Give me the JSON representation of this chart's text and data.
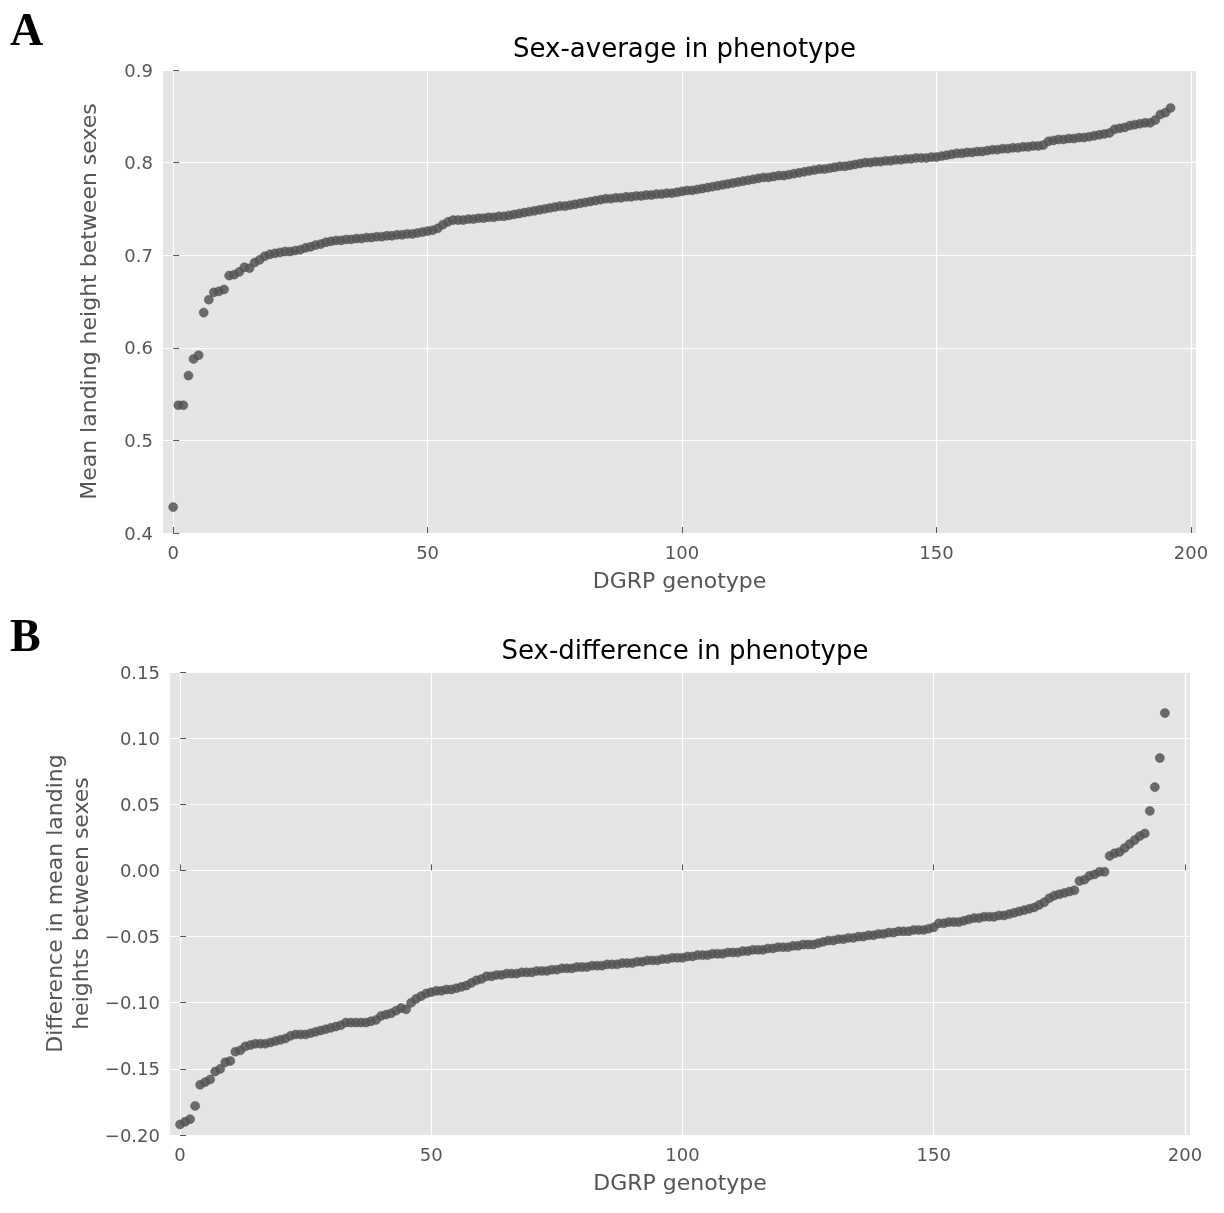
{
  "chart_data": [
    {
      "type": "scatter",
      "title": "Sex-average in phenotype",
      "xlabel": "DGRP genotype",
      "ylabel": "Mean landing height between sexes",
      "annotations": [
        "A"
      ],
      "grid": true,
      "marker": "circle",
      "xlim": [
        -2,
        201
      ],
      "xticks": [
        0,
        50,
        100,
        150,
        200
      ],
      "ylim": [
        0.4,
        0.9
      ],
      "yticks": [
        0.4,
        0.5,
        0.6,
        0.7,
        0.8,
        0.9
      ],
      "x": [
        0,
        1,
        2,
        3,
        4,
        5,
        6,
        7,
        8,
        9,
        10,
        11,
        12,
        13,
        14,
        15,
        16,
        17,
        18,
        19,
        20,
        21,
        22,
        23,
        24,
        25,
        26,
        27,
        28,
        29,
        30,
        31,
        32,
        33,
        34,
        35,
        36,
        37,
        38,
        39,
        40,
        41,
        42,
        43,
        44,
        45,
        46,
        47,
        48,
        49,
        50,
        51,
        52,
        53,
        54,
        55,
        56,
        57,
        58,
        59,
        60,
        61,
        62,
        63,
        64,
        65,
        66,
        67,
        68,
        69,
        70,
        71,
        72,
        73,
        74,
        75,
        76,
        77,
        78,
        79,
        80,
        81,
        82,
        83,
        84,
        85,
        86,
        87,
        88,
        89,
        90,
        91,
        92,
        93,
        94,
        95,
        96,
        97,
        98,
        99,
        100,
        101,
        102,
        103,
        104,
        105,
        106,
        107,
        108,
        109,
        110,
        111,
        112,
        113,
        114,
        115,
        116,
        117,
        118,
        119,
        120,
        121,
        122,
        123,
        124,
        125,
        126,
        127,
        128,
        129,
        130,
        131,
        132,
        133,
        134,
        135,
        136,
        137,
        138,
        139,
        140,
        141,
        142,
        143,
        144,
        145,
        146,
        147,
        148,
        149,
        150,
        151,
        152,
        153,
        154,
        155,
        156,
        157,
        158,
        159,
        160,
        161,
        162,
        163,
        164,
        165,
        166,
        167,
        168,
        169,
        170,
        171,
        172,
        173,
        174,
        175,
        176,
        177,
        178,
        179,
        180,
        181,
        182,
        183,
        184,
        185,
        186,
        187,
        188,
        189,
        190,
        191,
        192,
        193,
        194,
        195,
        196
      ],
      "series": [
        {
          "color": "#555555",
          "values": [
            0.428,
            0.538,
            0.538,
            0.57,
            0.588,
            0.592,
            0.638,
            0.652,
            0.66,
            0.661,
            0.663,
            0.678,
            0.679,
            0.682,
            0.687,
            0.686,
            0.692,
            0.695,
            0.699,
            0.701,
            0.702,
            0.703,
            0.704,
            0.704,
            0.705,
            0.706,
            0.708,
            0.709,
            0.711,
            0.712,
            0.714,
            0.715,
            0.716,
            0.716,
            0.717,
            0.717,
            0.718,
            0.718,
            0.719,
            0.719,
            0.72,
            0.72,
            0.721,
            0.721,
            0.722,
            0.722,
            0.723,
            0.723,
            0.724,
            0.725,
            0.726,
            0.727,
            0.729,
            0.733,
            0.736,
            0.738,
            0.738,
            0.738,
            0.739,
            0.739,
            0.74,
            0.74,
            0.741,
            0.741,
            0.742,
            0.742,
            0.743,
            0.744,
            0.745,
            0.746,
            0.747,
            0.748,
            0.749,
            0.75,
            0.751,
            0.752,
            0.753,
            0.753,
            0.754,
            0.755,
            0.756,
            0.757,
            0.758,
            0.759,
            0.76,
            0.761,
            0.761,
            0.762,
            0.762,
            0.763,
            0.763,
            0.764,
            0.764,
            0.765,
            0.765,
            0.766,
            0.766,
            0.767,
            0.767,
            0.768,
            0.769,
            0.77,
            0.77,
            0.771,
            0.772,
            0.773,
            0.774,
            0.775,
            0.776,
            0.777,
            0.778,
            0.779,
            0.78,
            0.781,
            0.782,
            0.783,
            0.784,
            0.784,
            0.785,
            0.786,
            0.786,
            0.787,
            0.788,
            0.789,
            0.79,
            0.791,
            0.792,
            0.793,
            0.793,
            0.794,
            0.795,
            0.796,
            0.796,
            0.797,
            0.798,
            0.799,
            0.8,
            0.8,
            0.801,
            0.801,
            0.802,
            0.802,
            0.803,
            0.803,
            0.804,
            0.804,
            0.805,
            0.805,
            0.805,
            0.806,
            0.806,
            0.807,
            0.808,
            0.809,
            0.81,
            0.81,
            0.811,
            0.811,
            0.812,
            0.812,
            0.813,
            0.814,
            0.814,
            0.815,
            0.815,
            0.816,
            0.816,
            0.817,
            0.817,
            0.818,
            0.818,
            0.819,
            0.823,
            0.824,
            0.825,
            0.825,
            0.826,
            0.826,
            0.827,
            0.827,
            0.828,
            0.829,
            0.83,
            0.831,
            0.832,
            0.836,
            0.837,
            0.838,
            0.84,
            0.841,
            0.842,
            0.843,
            0.843,
            0.846,
            0.852,
            0.854,
            0.859
          ]
        }
      ]
    },
    {
      "type": "scatter",
      "title": "Sex-difference in phenotype",
      "xlabel": "DGRP genotype",
      "ylabel": "Difference in mean landing\nheights between sexes",
      "annotations": [
        "B"
      ],
      "grid": true,
      "marker": "circle",
      "xlim": [
        -2,
        201
      ],
      "xticks": [
        0,
        50,
        100,
        150,
        200
      ],
      "ylim": [
        -0.2,
        0.15
      ],
      "yticks": [
        {
          "value": -0.2,
          "label": "−0.20"
        },
        {
          "value": -0.15,
          "label": "−0.15"
        },
        {
          "value": -0.1,
          "label": "−0.10"
        },
        {
          "value": -0.05,
          "label": "−0.05"
        },
        {
          "value": 0,
          "label": "0.00"
        },
        {
          "value": 0.05,
          "label": "0.05"
        },
        {
          "value": 0.1,
          "label": "0.10"
        },
        {
          "value": 0.15,
          "label": "0.15"
        }
      ],
      "x": [
        0,
        1,
        2,
        3,
        4,
        5,
        6,
        7,
        8,
        9,
        10,
        11,
        12,
        13,
        14,
        15,
        16,
        17,
        18,
        19,
        20,
        21,
        22,
        23,
        24,
        25,
        26,
        27,
        28,
        29,
        30,
        31,
        32,
        33,
        34,
        35,
        36,
        37,
        38,
        39,
        40,
        41,
        42,
        43,
        44,
        45,
        46,
        47,
        48,
        49,
        50,
        51,
        52,
        53,
        54,
        55,
        56,
        57,
        58,
        59,
        60,
        61,
        62,
        63,
        64,
        65,
        66,
        67,
        68,
        69,
        70,
        71,
        72,
        73,
        74,
        75,
        76,
        77,
        78,
        79,
        80,
        81,
        82,
        83,
        84,
        85,
        86,
        87,
        88,
        89,
        90,
        91,
        92,
        93,
        94,
        95,
        96,
        97,
        98,
        99,
        100,
        101,
        102,
        103,
        104,
        105,
        106,
        107,
        108,
        109,
        110,
        111,
        112,
        113,
        114,
        115,
        116,
        117,
        118,
        119,
        120,
        121,
        122,
        123,
        124,
        125,
        126,
        127,
        128,
        129,
        130,
        131,
        132,
        133,
        134,
        135,
        136,
        137,
        138,
        139,
        140,
        141,
        142,
        143,
        144,
        145,
        146,
        147,
        148,
        149,
        150,
        151,
        152,
        153,
        154,
        155,
        156,
        157,
        158,
        159,
        160,
        161,
        162,
        163,
        164,
        165,
        166,
        167,
        168,
        169,
        170,
        171,
        172,
        173,
        174,
        175,
        176,
        177,
        178,
        179,
        180,
        181,
        182,
        183,
        184,
        185,
        186,
        187,
        188,
        189,
        190,
        191,
        192,
        193,
        194,
        195,
        196
      ],
      "series": [
        {
          "color": "#555555",
          "values": [
            -0.192,
            -0.19,
            -0.188,
            -0.178,
            -0.162,
            -0.16,
            -0.158,
            -0.152,
            -0.15,
            -0.145,
            -0.144,
            -0.137,
            -0.136,
            -0.133,
            -0.132,
            -0.131,
            -0.131,
            -0.131,
            -0.13,
            -0.129,
            -0.128,
            -0.127,
            -0.125,
            -0.124,
            -0.124,
            -0.124,
            -0.123,
            -0.122,
            -0.121,
            -0.12,
            -0.119,
            -0.118,
            -0.117,
            -0.115,
            -0.115,
            -0.115,
            -0.115,
            -0.115,
            -0.114,
            -0.113,
            -0.11,
            -0.109,
            -0.108,
            -0.106,
            -0.104,
            -0.105,
            -0.1,
            -0.097,
            -0.095,
            -0.093,
            -0.092,
            -0.091,
            -0.091,
            -0.09,
            -0.09,
            -0.089,
            -0.088,
            -0.087,
            -0.085,
            -0.083,
            -0.082,
            -0.08,
            -0.08,
            -0.079,
            -0.079,
            -0.078,
            -0.078,
            -0.078,
            -0.077,
            -0.077,
            -0.077,
            -0.076,
            -0.076,
            -0.076,
            -0.075,
            -0.075,
            -0.074,
            -0.074,
            -0.074,
            -0.073,
            -0.073,
            -0.073,
            -0.072,
            -0.072,
            -0.072,
            -0.071,
            -0.071,
            -0.071,
            -0.07,
            -0.07,
            -0.07,
            -0.069,
            -0.069,
            -0.068,
            -0.068,
            -0.068,
            -0.067,
            -0.067,
            -0.066,
            -0.066,
            -0.066,
            -0.065,
            -0.065,
            -0.064,
            -0.064,
            -0.064,
            -0.063,
            -0.063,
            -0.063,
            -0.062,
            -0.062,
            -0.062,
            -0.061,
            -0.061,
            -0.06,
            -0.06,
            -0.06,
            -0.059,
            -0.059,
            -0.058,
            -0.058,
            -0.058,
            -0.057,
            -0.057,
            -0.056,
            -0.056,
            -0.056,
            -0.055,
            -0.054,
            -0.053,
            -0.053,
            -0.052,
            -0.052,
            -0.051,
            -0.051,
            -0.05,
            -0.05,
            -0.049,
            -0.049,
            -0.048,
            -0.048,
            -0.047,
            -0.047,
            -0.046,
            -0.046,
            -0.046,
            -0.045,
            -0.045,
            -0.045,
            -0.044,
            -0.043,
            -0.04,
            -0.04,
            -0.039,
            -0.039,
            -0.039,
            -0.038,
            -0.037,
            -0.036,
            -0.036,
            -0.035,
            -0.035,
            -0.035,
            -0.034,
            -0.034,
            -0.033,
            -0.032,
            -0.031,
            -0.03,
            -0.029,
            -0.028,
            -0.026,
            -0.024,
            -0.021,
            -0.019,
            -0.018,
            -0.017,
            -0.016,
            -0.015,
            -0.008,
            -0.007,
            -0.004,
            -0.003,
            -0.001,
            -0.001,
            0.011,
            0.013,
            0.014,
            0.017,
            0.02,
            0.023,
            0.026,
            0.028,
            0.045,
            0.063,
            0.085,
            0.119
          ]
        }
      ]
    }
  ]
}
